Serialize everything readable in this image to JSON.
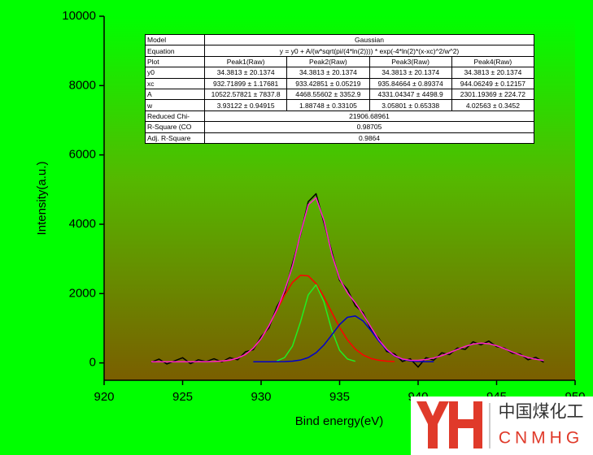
{
  "chart_data": {
    "type": "line",
    "xlabel": "Bind energy(eV)",
    "ylabel": "Intensity(a.u.)",
    "xlim": [
      920,
      950
    ],
    "xticks": [
      920,
      925,
      930,
      935,
      940,
      945,
      950
    ],
    "ylim": [
      -500,
      10000
    ],
    "yticks": [
      0,
      2000,
      4000,
      6000,
      8000,
      10000
    ],
    "x": [
      923,
      923.5,
      924,
      924.5,
      925,
      925.5,
      926,
      926.5,
      927,
      927.5,
      928,
      928.5,
      929,
      929.5,
      930,
      930.5,
      931,
      931.5,
      932,
      932.5,
      933,
      933.5,
      934,
      934.5,
      935,
      935.5,
      936,
      936.5,
      937,
      937.5,
      938,
      938.5,
      939,
      939.5,
      940,
      940.5,
      941,
      941.5,
      942,
      942.5,
      943,
      943.5,
      944,
      944.5,
      945,
      945.5,
      946,
      946.5,
      947,
      947.5,
      948
    ],
    "series": [
      {
        "color": "#000000",
        "values": [
          20,
          110,
          -30,
          60,
          150,
          -20,
          90,
          40,
          120,
          30,
          150,
          90,
          320,
          380,
          760,
          1010,
          1620,
          2010,
          2870,
          3680,
          4650,
          4880,
          4050,
          3210,
          2380,
          2120,
          1650,
          1450,
          960,
          710,
          330,
          260,
          40,
          120,
          -120,
          150,
          80,
          290,
          240,
          430,
          390,
          610,
          520,
          630,
          470,
          430,
          280,
          260,
          90,
          160,
          20
        ]
      },
      {
        "color": "#ff0000",
        "x": [
          927,
          927.5,
          928,
          928.5,
          929,
          929.5,
          930,
          930.5,
          931,
          931.5,
          932,
          932.5,
          933,
          933.5,
          934,
          934.5,
          935,
          935.5,
          936,
          936.5,
          937,
          937.5,
          938,
          938.5
        ],
        "values": [
          41,
          53,
          80,
          137,
          244,
          425,
          700,
          1072,
          1512,
          1959,
          2324,
          2526,
          2513,
          2288,
          1907,
          1457,
          1023,
          662,
          399,
          227,
          128,
          76,
          51,
          40
        ]
      },
      {
        "color": "#22ee22",
        "x": [
          931,
          931.5,
          932,
          932.5,
          933,
          933.5,
          934,
          934.5,
          935,
          935.5,
          936
        ],
        "values": [
          56,
          156,
          487,
          1169,
          1961,
          2251,
          1762,
          947,
          361,
          113,
          47
        ]
      },
      {
        "color": "#0000cc",
        "x": [
          929.5,
          930,
          930.5,
          931,
          931.5,
          932,
          932.5,
          933,
          933.5,
          934,
          934.5,
          935,
          935.5,
          936,
          936.5,
          937,
          937.5,
          938,
          938.5,
          939,
          939.5,
          940,
          940.5,
          941
        ],
        "values": [
          34,
          34,
          34,
          35,
          39,
          50,
          82,
          154,
          293,
          516,
          809,
          1108,
          1317,
          1355,
          1207,
          933,
          627,
          372,
          200,
          104,
          60,
          42,
          36,
          35
        ]
      },
      {
        "color": "#ff22cc",
        "values": [
          34,
          34,
          34,
          34,
          34,
          34,
          35,
          36,
          41,
          53,
          80,
          137,
          244,
          425,
          700,
          1075,
          1536,
          2086,
          2793,
          3709,
          4560,
          4764,
          4117,
          3145,
          2424,
          2024,
          1733,
          1401,
          1027,
          669,
          390,
          209,
          113,
          76,
          74,
          98,
          143,
          209,
          294,
          388,
          477,
          543,
          571,
          553,
          496,
          411,
          316,
          228,
          156,
          105,
          72
        ]
      }
    ],
    "table": {
      "rows": [
        [
          "Model",
          "Gaussian"
        ],
        [
          "Equation",
          "y = y0 + A/(w*sqrt(pi/(4*ln(2)))) * exp(-4*ln(2)*(x-xc)^2/w^2)"
        ],
        [
          "Plot",
          "Peak1(Raw)",
          "Peak2(Raw)",
          "Peak3(Raw)",
          "Peak4(Raw)"
        ],
        [
          "y0",
          "34.3813 ± 20.1374",
          "34.3813 ± 20.1374",
          "34.3813 ± 20.1374",
          "34.3813 ± 20.1374"
        ],
        [
          "xc",
          "932.71899 ± 1.17681",
          "933.42851 ± 0.05219",
          "935.84664 ± 0.89374",
          "944.06249 ± 0.12157"
        ],
        [
          "A",
          "10522.57821 ± 7837.8",
          "4468.55602 ± 3352.9",
          "4331.04347 ± 4498.9",
          "2301.19369 ± 224.72"
        ],
        [
          "w",
          "3.93122 ± 0.94915",
          "1.88748 ± 0.33105",
          "3.05801 ± 0.65338",
          "4.02563 ± 0.3452"
        ],
        [
          "Reduced Chi-",
          "21906.68961"
        ],
        [
          "R-Square (CO",
          "0.98705"
        ],
        [
          "Adj. R-Square",
          "0.9864"
        ]
      ]
    }
  },
  "watermark": {
    "title": "中国煤化工",
    "subtitle": "CNMHG"
  }
}
